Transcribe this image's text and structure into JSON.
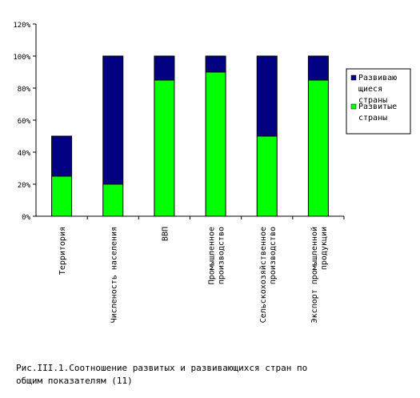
{
  "chart_data": {
    "type": "bar",
    "stacked": true,
    "categories": [
      "Территория",
      "Численость населения",
      "ВВП",
      "Промышленное производство",
      "Сельскохозяйственное производство",
      "Экспорт промышленной продукции"
    ],
    "category_lines": [
      [
        "Территория"
      ],
      [
        "Численость населения"
      ],
      [
        "ВВП"
      ],
      [
        "Промышленное",
        "производство"
      ],
      [
        "Сельскохозяйственное",
        "производство"
      ],
      [
        "Экспорт промышленной",
        "продукции"
      ]
    ],
    "series": [
      {
        "name": "Развитые страны",
        "legend_lines": [
          "Развитые",
          "страны"
        ],
        "color": "#00ff00",
        "values": [
          25,
          20,
          85,
          90,
          50,
          85
        ]
      },
      {
        "name": "Развивающиеся страны",
        "legend_lines": [
          "Развиваю",
          "щиеся",
          "страны"
        ],
        "color": "#000080",
        "values": [
          25,
          80,
          15,
          10,
          50,
          15
        ]
      }
    ],
    "yticks": [
      "0%",
      "20%",
      "40%",
      "60%",
      "80%",
      "100%",
      "120%"
    ],
    "ylim": [
      0,
      120
    ],
    "grid": false,
    "legend_position": "right"
  },
  "caption": {
    "line1": "Рис.III.1.Соотношение развитых и развивающихся стран по",
    "line2": "общим показателям (11)"
  }
}
